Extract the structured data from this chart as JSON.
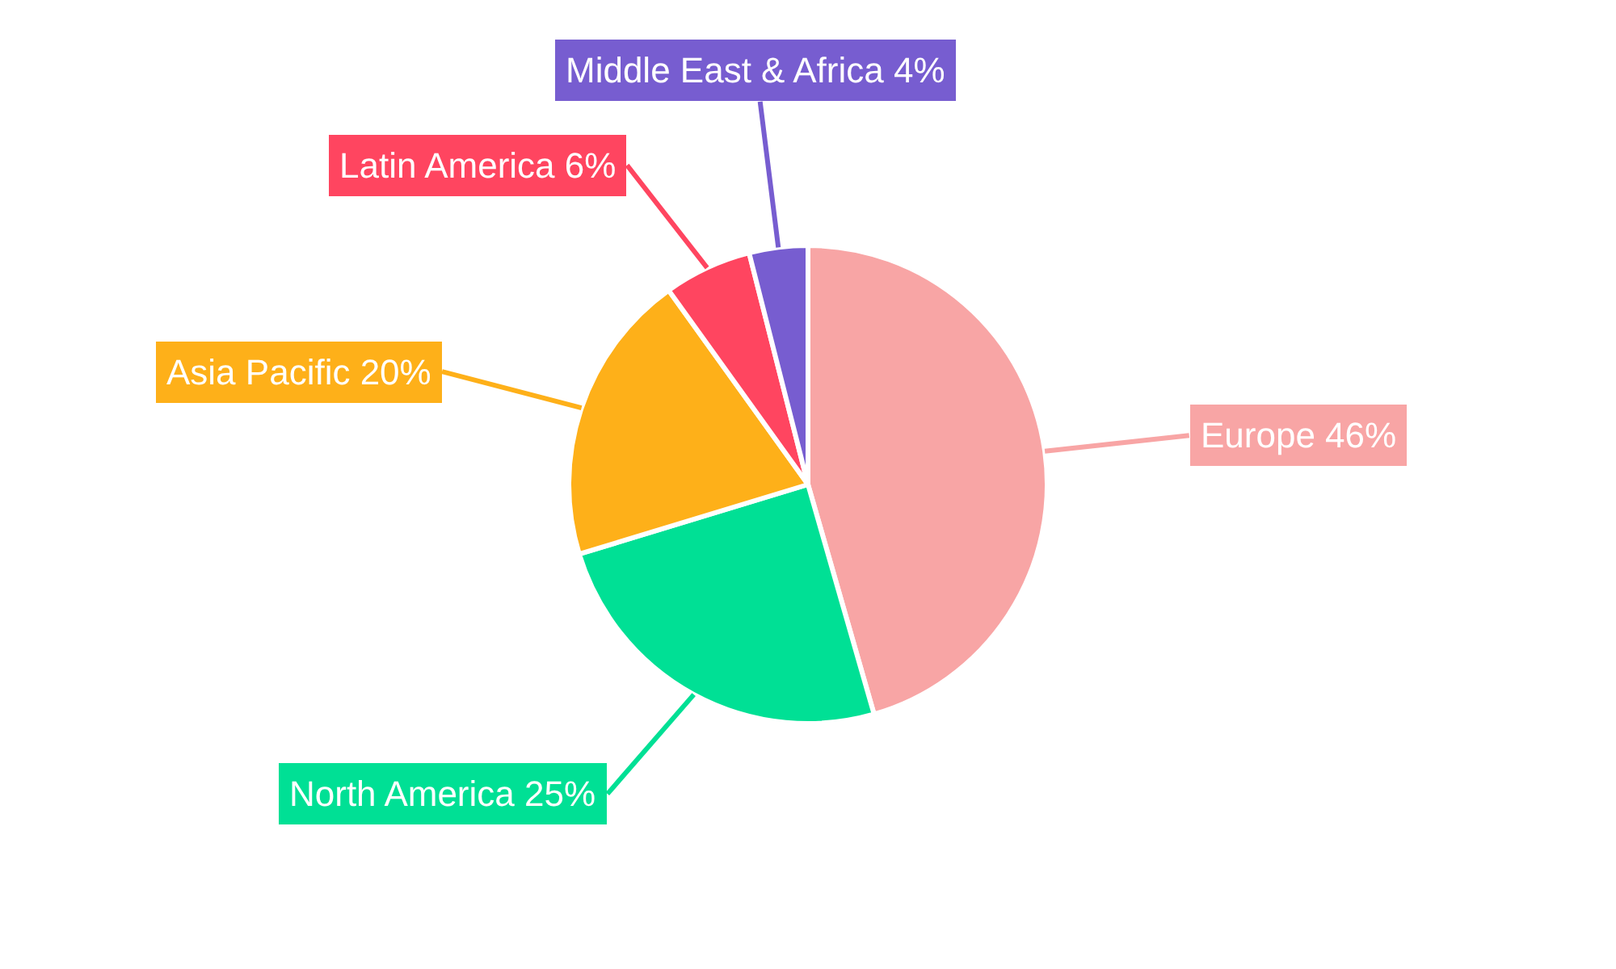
{
  "chart_data": {
    "type": "pie",
    "categories": [
      "Europe",
      "North America",
      "Asia Pacific",
      "Latin America",
      "Middle East & Africa"
    ],
    "values": [
      46,
      25,
      20,
      6,
      4
    ],
    "value_labels": [
      "46%",
      "25%",
      "20%",
      "6%",
      "4%"
    ],
    "colors": [
      "#f8a5a5",
      "#00e095",
      "#feb019",
      "#ff4560",
      "#775dd0"
    ],
    "data_labels": true,
    "legend": false
  }
}
